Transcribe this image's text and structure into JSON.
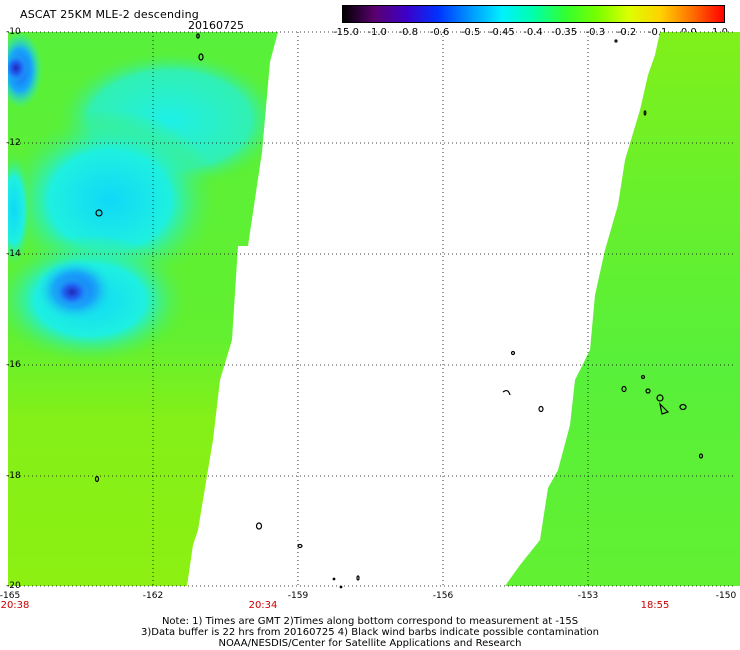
{
  "header": {
    "title": "ASCAT 25KM MLE-2 descending",
    "date": "20160725"
  },
  "colorbar": {
    "labels": [
      "-15.0",
      "-1.0",
      "-0.8",
      "-0.6",
      "-0.5",
      "-0.45",
      "-0.4",
      "-0.35",
      "-0.3",
      "-0.2",
      "-0.1",
      "0.0",
      "1.0"
    ],
    "colors": [
      "#000000",
      "#5a006e",
      "#3c00c8",
      "#0032ff",
      "#0096ff",
      "#00f0ff",
      "#00ffaa",
      "#32ff32",
      "#78ff00",
      "#dcff00",
      "#ffd200",
      "#ff6e00",
      "#ff0000"
    ]
  },
  "map": {
    "lat_labels": [
      "-10",
      "-12",
      "-14",
      "-16",
      "-18",
      "-20"
    ],
    "lon_labels": [
      "-165",
      "-162",
      "-159",
      "-156",
      "-153",
      "-150"
    ],
    "time_labels": [
      "20:38",
      "20:34",
      "18:55"
    ],
    "time_color": "#cc0000",
    "field_colors": {
      "green": "#58f03a",
      "yellow_green": "#8cf012",
      "cyan": "#1ef0d8",
      "cyan_green": "#3cf08a",
      "blue": "#1e6cf8",
      "dark_blue": "#2230c8"
    }
  },
  "footer": {
    "line1": "Note: 1) Times are GMT 2)Times along bottom correspond to measurement at -15S",
    "line2": "3)Data buffer is 22 hrs from 20160725 4) Black wind barbs indicate possible contamination",
    "line3": "NOAA/NESDIS/Center for Satellite Applications and Research"
  }
}
